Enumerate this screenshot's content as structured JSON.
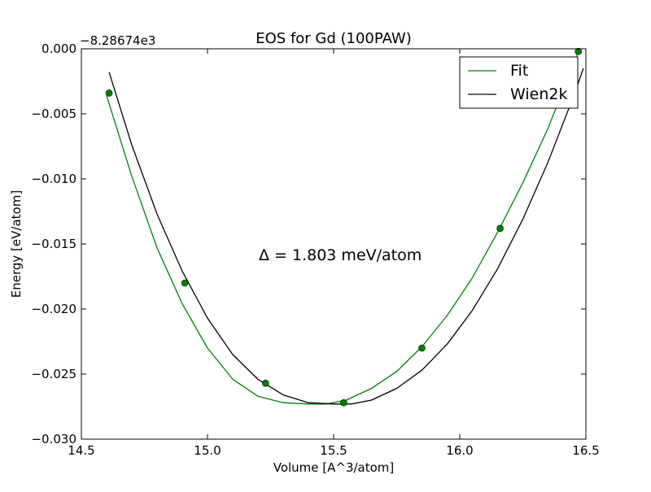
{
  "chart_data": {
    "type": "line",
    "title": "EOS for Gd (100PAW)",
    "xlabel": "Volume [A^3/atom]",
    "ylabel": "Energy [eV/atom]",
    "y_offset_label": "−8.28674e3",
    "xlim": [
      14.5,
      16.5
    ],
    "ylim": [
      -0.03,
      0.0
    ],
    "x_ticks": [
      14.5,
      15.0,
      15.5,
      16.0,
      16.5
    ],
    "x_tick_labels": [
      "14.5",
      "15.0",
      "15.5",
      "16.0",
      "16.5"
    ],
    "y_ticks": [
      0.0,
      -0.005,
      -0.01,
      -0.015,
      -0.02,
      -0.025,
      -0.03
    ],
    "y_tick_labels": [
      "0.000",
      "−0.005",
      "−0.010",
      "−0.015",
      "−0.020",
      "−0.025",
      "−0.030"
    ],
    "grid": false,
    "legend_position": "top-right",
    "annotation": "Δ = 1.803 meV/atom",
    "series": [
      {
        "name": "Fit",
        "color": "#008000",
        "kind": "line",
        "x": [
          14.6,
          14.7,
          14.8,
          14.9,
          15.0,
          15.1,
          15.2,
          15.3,
          15.4,
          15.47,
          15.55,
          15.65,
          15.75,
          15.85,
          15.95,
          16.05,
          16.15,
          16.25,
          16.35,
          16.47
        ],
        "y": [
          -0.0036,
          -0.0098,
          -0.0153,
          -0.0196,
          -0.023,
          -0.0254,
          -0.0267,
          -0.0272,
          -0.0273,
          -0.0273,
          -0.027,
          -0.0261,
          -0.0248,
          -0.0229,
          -0.0205,
          -0.0176,
          -0.0141,
          -0.0103,
          -0.0061,
          -0.0002
        ]
      },
      {
        "name": "Wien2k",
        "color": "#000000",
        "kind": "line",
        "x": [
          14.61,
          14.7,
          14.8,
          14.9,
          15.0,
          15.1,
          15.2,
          15.3,
          15.4,
          15.5,
          15.57,
          15.65,
          15.75,
          15.85,
          15.95,
          16.05,
          16.15,
          16.25,
          16.35,
          16.45,
          16.49
        ],
        "y": [
          -0.0018,
          -0.0074,
          -0.0127,
          -0.0171,
          -0.0207,
          -0.0235,
          -0.0254,
          -0.0266,
          -0.0272,
          -0.0273,
          -0.0273,
          -0.027,
          -0.0261,
          -0.0247,
          -0.0227,
          -0.0201,
          -0.0169,
          -0.0131,
          -0.0087,
          -0.0037,
          -0.0015
        ]
      },
      {
        "name": "",
        "color": "#008000",
        "kind": "points",
        "x": [
          14.61,
          14.91,
          15.23,
          15.54,
          15.85,
          16.16,
          16.47
        ],
        "y": [
          -0.0034,
          -0.018,
          -0.0257,
          -0.0272,
          -0.023,
          -0.0138,
          -0.0002
        ]
      }
    ]
  }
}
